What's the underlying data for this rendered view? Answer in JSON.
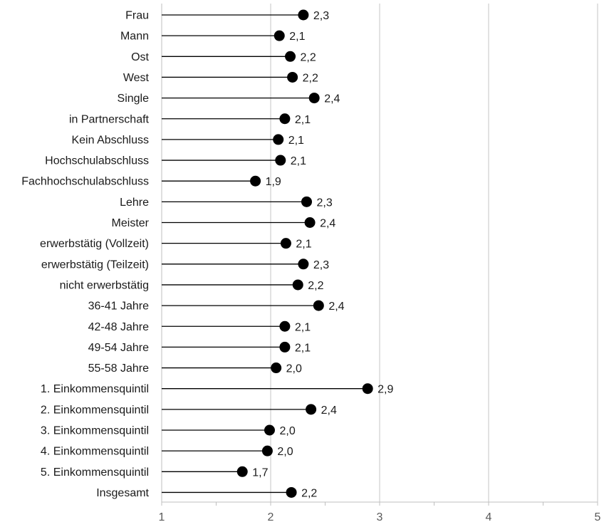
{
  "chart_data": {
    "type": "dot-plot",
    "title": "",
    "xlabel": "",
    "ylabel": "",
    "xlim": [
      1,
      5
    ],
    "x_ticks": [
      1,
      2,
      3,
      4,
      5
    ],
    "x_tick_labels": [
      "1",
      "2",
      "3",
      "4",
      "5"
    ],
    "grid": "vertical",
    "legend": "none",
    "colors": {
      "marker": "#000000",
      "line": "#000000",
      "grid": "#d9d9d9",
      "axis": "#bfbfbf"
    },
    "categories": [
      "Frau",
      "Mann",
      "Ost",
      "West",
      "Single",
      "in Partnerschaft",
      "Kein Abschluss",
      "Hochschulabschluss",
      "Fachhochschulabschluss",
      "Lehre",
      "Meister",
      "erwerbstätig (Vollzeit)",
      "erwerbstätig (Teilzeit)",
      "nicht erwerbstätig",
      "36-41 Jahre",
      "42-48 Jahre",
      "49-54 Jahre",
      "55-58 Jahre",
      "1. Einkommensquintil",
      "2. Einkommensquintil",
      "3. Einkommensquintil",
      "4. Einkommensquintil",
      "5. Einkommensquintil",
      "Insgesamt"
    ],
    "values": [
      2.3,
      2.08,
      2.18,
      2.2,
      2.4,
      2.13,
      2.07,
      2.09,
      1.86,
      2.33,
      2.36,
      2.14,
      2.3,
      2.25,
      2.44,
      2.13,
      2.13,
      2.05,
      2.89,
      2.37,
      1.99,
      1.97,
      1.74,
      2.19
    ],
    "value_labels": [
      "2,3",
      "2,1",
      "2,2",
      "2,2",
      "2,4",
      "2,1",
      "2,1",
      "2,1",
      "1,9",
      "2,3",
      "2,4",
      "2,1",
      "2,3",
      "2,2",
      "2,4",
      "2,1",
      "2,1",
      "2,0",
      "2,9",
      "2,4",
      "2,0",
      "2,0",
      "1,7",
      "2,2"
    ]
  }
}
